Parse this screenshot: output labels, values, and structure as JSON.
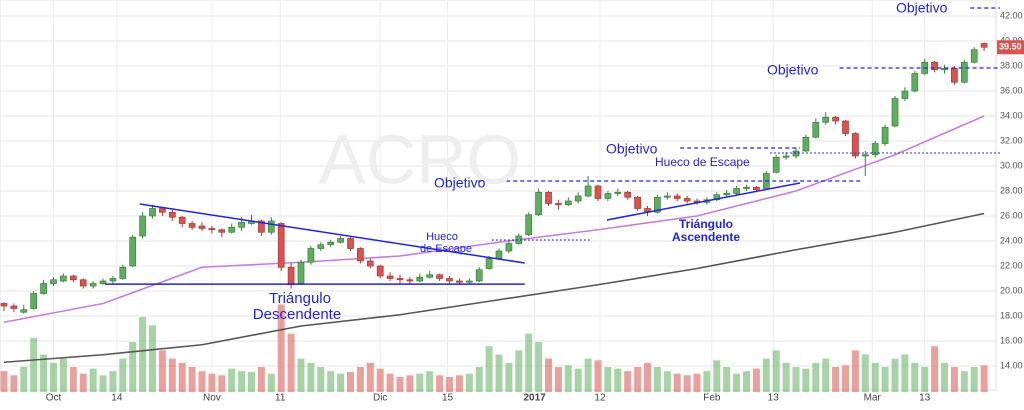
{
  "chart_data": {
    "type": "candlestick",
    "watermark": "ACRO",
    "ylim": [
      14,
      42
    ],
    "yticks": [
      {
        "value": 14,
        "label": "14.00"
      },
      {
        "value": 16,
        "label": "16.00"
      },
      {
        "value": 18,
        "label": "18.00"
      },
      {
        "value": 20,
        "label": "20.00"
      },
      {
        "value": 22,
        "label": "22.00"
      },
      {
        "value": 24,
        "label": "24.00"
      },
      {
        "value": 26,
        "label": "26.00"
      },
      {
        "value": 28,
        "label": "28.00"
      },
      {
        "value": 30,
        "label": "30.00"
      },
      {
        "value": 32,
        "label": "32.00"
      },
      {
        "value": 34,
        "label": "34.00"
      },
      {
        "value": 36,
        "label": "36.00"
      },
      {
        "value": 38,
        "label": "38.00"
      },
      {
        "value": 40,
        "label": "40.00"
      },
      {
        "value": 42,
        "label": "42.00"
      }
    ],
    "xticks": [
      {
        "value": 5,
        "label": "Oct"
      },
      {
        "value": 11.4,
        "label": "14"
      },
      {
        "value": 21,
        "label": "Nov"
      },
      {
        "value": 27.9,
        "label": "11"
      },
      {
        "value": 38,
        "label": "Dic"
      },
      {
        "value": 44.8,
        "label": "15"
      },
      {
        "value": 53.6,
        "label": "2017"
      },
      {
        "value": 60.2,
        "label": "12"
      },
      {
        "value": 71.5,
        "label": "Feb"
      },
      {
        "value": 77.7,
        "label": "13"
      },
      {
        "value": 87.7,
        "label": "Mar"
      },
      {
        "value": 93,
        "label": "13"
      }
    ],
    "grid": true,
    "up_color": "#5fae5f",
    "down_color": "#d9534f",
    "last_price": {
      "value": 39.5,
      "label": "39.50"
    },
    "ohlc": [
      [
        19.0,
        19.1,
        18.4,
        18.8
      ],
      [
        18.8,
        19.0,
        18.3,
        18.6
      ],
      [
        18.3,
        18.9,
        18.2,
        18.5
      ],
      [
        18.6,
        20.0,
        18.5,
        19.8
      ],
      [
        19.8,
        20.9,
        19.7,
        20.6
      ],
      [
        20.6,
        21.1,
        20.4,
        20.9
      ],
      [
        20.8,
        21.4,
        20.7,
        21.2
      ],
      [
        21.2,
        21.3,
        20.7,
        20.9
      ],
      [
        20.9,
        21.0,
        20.2,
        20.4
      ],
      [
        20.4,
        20.8,
        20.2,
        20.6
      ],
      [
        20.6,
        21.0,
        20.5,
        20.8
      ],
      [
        20.8,
        21.2,
        20.6,
        21.0
      ],
      [
        21.0,
        22.1,
        20.9,
        21.9
      ],
      [
        22.0,
        24.5,
        21.9,
        24.3
      ],
      [
        24.4,
        26.3,
        24.2,
        26.0
      ],
      [
        26.0,
        26.9,
        25.8,
        26.6
      ],
      [
        26.6,
        26.7,
        26.0,
        26.3
      ],
      [
        26.3,
        26.5,
        25.6,
        25.9
      ],
      [
        25.9,
        26.0,
        25.1,
        25.4
      ],
      [
        25.4,
        25.6,
        24.9,
        25.1
      ],
      [
        25.2,
        25.5,
        24.8,
        25.0
      ],
      [
        25.0,
        25.2,
        24.6,
        24.9
      ],
      [
        24.9,
        25.0,
        24.3,
        24.7
      ],
      [
        24.7,
        25.4,
        24.6,
        25.1
      ],
      [
        25.1,
        25.9,
        24.8,
        25.5
      ],
      [
        25.4,
        26.1,
        25.3,
        25.6
      ],
      [
        25.6,
        25.7,
        24.4,
        24.7
      ],
      [
        24.7,
        25.9,
        24.5,
        25.6
      ],
      [
        25.4,
        25.5,
        21.6,
        21.9
      ],
      [
        21.9,
        22.2,
        20.2,
        20.5
      ],
      [
        20.6,
        22.5,
        20.5,
        22.3
      ],
      [
        22.3,
        23.6,
        22.1,
        23.4
      ],
      [
        23.4,
        23.9,
        23.2,
        23.7
      ],
      [
        23.7,
        24.1,
        23.5,
        23.9
      ],
      [
        23.9,
        24.4,
        23.8,
        24.2
      ],
      [
        24.2,
        24.3,
        23.2,
        23.4
      ],
      [
        23.4,
        23.5,
        22.2,
        22.4
      ],
      [
        22.4,
        22.6,
        21.8,
        22.0
      ],
      [
        22.0,
        22.1,
        21.0,
        21.2
      ],
      [
        21.2,
        21.5,
        20.8,
        21.0
      ],
      [
        21.0,
        21.3,
        20.6,
        20.9
      ],
      [
        20.9,
        21.1,
        20.5,
        20.8
      ],
      [
        20.8,
        21.4,
        20.7,
        21.1
      ],
      [
        21.1,
        21.6,
        21.0,
        21.3
      ],
      [
        21.3,
        21.4,
        20.8,
        21.0
      ],
      [
        21.0,
        21.2,
        20.6,
        20.8
      ],
      [
        20.8,
        21.0,
        20.5,
        20.7
      ],
      [
        20.7,
        21.0,
        20.5,
        20.8
      ],
      [
        20.8,
        21.9,
        20.7,
        21.7
      ],
      [
        21.8,
        22.8,
        21.7,
        22.6
      ],
      [
        22.6,
        23.4,
        22.5,
        23.2
      ],
      [
        23.2,
        24.0,
        23.0,
        23.8
      ],
      [
        23.8,
        24.6,
        23.7,
        24.4
      ],
      [
        24.5,
        26.3,
        24.4,
        26.1
      ],
      [
        26.1,
        28.2,
        26.0,
        27.9
      ],
      [
        27.9,
        28.0,
        26.8,
        27.0
      ],
      [
        27.0,
        27.3,
        26.5,
        26.9
      ],
      [
        26.9,
        27.5,
        26.8,
        27.2
      ],
      [
        27.2,
        27.9,
        27.0,
        27.6
      ],
      [
        27.6,
        29.2,
        27.5,
        28.4
      ],
      [
        28.4,
        28.5,
        27.2,
        27.4
      ],
      [
        27.4,
        28.0,
        27.2,
        27.8
      ],
      [
        27.8,
        28.2,
        27.6,
        27.9
      ],
      [
        27.9,
        28.0,
        27.3,
        27.5
      ],
      [
        27.5,
        27.6,
        26.4,
        26.6
      ],
      [
        26.6,
        26.8,
        26.0,
        26.3
      ],
      [
        26.3,
        27.7,
        26.2,
        27.5
      ],
      [
        27.5,
        27.9,
        27.3,
        27.6
      ],
      [
        27.6,
        27.8,
        27.2,
        27.4
      ],
      [
        27.4,
        27.6,
        27.0,
        27.2
      ],
      [
        27.2,
        27.4,
        26.9,
        27.1
      ],
      [
        27.1,
        27.5,
        26.9,
        27.3
      ],
      [
        27.3,
        27.9,
        27.2,
        27.7
      ],
      [
        27.7,
        28.1,
        27.5,
        27.8
      ],
      [
        27.8,
        28.4,
        27.7,
        28.2
      ],
      [
        28.2,
        28.5,
        28.0,
        28.3
      ],
      [
        28.3,
        28.4,
        27.9,
        28.1
      ],
      [
        28.2,
        29.6,
        28.1,
        29.4
      ],
      [
        29.5,
        30.9,
        29.4,
        30.7
      ],
      [
        30.7,
        31.1,
        30.5,
        30.8
      ],
      [
        30.8,
        31.5,
        30.6,
        31.2
      ],
      [
        31.2,
        32.5,
        31.1,
        32.3
      ],
      [
        32.3,
        33.8,
        32.2,
        33.5
      ],
      [
        33.5,
        34.3,
        33.3,
        33.9
      ],
      [
        33.9,
        34.0,
        33.3,
        33.6
      ],
      [
        33.6,
        33.7,
        32.4,
        32.6
      ],
      [
        32.6,
        32.7,
        30.6,
        30.8
      ],
      [
        30.8,
        31.2,
        29.2,
        30.9
      ],
      [
        30.9,
        32.0,
        30.7,
        31.8
      ],
      [
        31.8,
        33.3,
        31.6,
        33.1
      ],
      [
        33.2,
        35.6,
        33.1,
        35.4
      ],
      [
        35.4,
        36.3,
        35.2,
        36.0
      ],
      [
        36.0,
        37.6,
        35.9,
        37.4
      ],
      [
        37.4,
        38.6,
        37.3,
        38.3
      ],
      [
        38.3,
        38.4,
        37.5,
        37.7
      ],
      [
        37.7,
        38.1,
        37.4,
        37.8
      ],
      [
        37.8,
        38.0,
        36.5,
        36.7
      ],
      [
        36.7,
        38.5,
        36.6,
        38.3
      ],
      [
        38.3,
        39.5,
        38.2,
        39.3
      ],
      [
        39.8,
        39.9,
        39.2,
        39.5
      ]
    ],
    "volume_lim": [
      0,
      120
    ],
    "volume": [
      25,
      20,
      30,
      65,
      45,
      35,
      40,
      30,
      22,
      28,
      20,
      25,
      40,
      60,
      90,
      80,
      50,
      40,
      35,
      30,
      25,
      22,
      20,
      28,
      25,
      24,
      30,
      22,
      105,
      70,
      40,
      35,
      30,
      25,
      22,
      24,
      30,
      35,
      28,
      22,
      18,
      20,
      22,
      25,
      20,
      18,
      20,
      22,
      30,
      55,
      45,
      35,
      50,
      70,
      60,
      40,
      30,
      32,
      28,
      40,
      38,
      30,
      28,
      25,
      30,
      35,
      30,
      25,
      22,
      20,
      22,
      25,
      38,
      30,
      22,
      25,
      28,
      40,
      50,
      35,
      30,
      28,
      35,
      40,
      30,
      32,
      50,
      45,
      35,
      30,
      40,
      45,
      35,
      30,
      55,
      35,
      30,
      25,
      30,
      32
    ],
    "ma": [
      {
        "color": "#c77ddb",
        "x": [
          0,
          10,
          20,
          30,
          40,
          50,
          60,
          70,
          80,
          90,
          99
        ],
        "values": [
          17.5,
          19.0,
          21.9,
          22.3,
          22.8,
          23.9,
          24.9,
          26.0,
          28.0,
          30.9,
          34.0
        ]
      },
      {
        "color": "#555555",
        "x": [
          0,
          10,
          20,
          30,
          40,
          50,
          60,
          70,
          80,
          90,
          99
        ],
        "values": [
          14.3,
          14.9,
          15.7,
          17.2,
          18.1,
          19.3,
          20.5,
          21.8,
          23.3,
          24.7,
          26.2
        ]
      }
    ],
    "lines": [
      {
        "style": "solid",
        "x": [
          13.7,
          52.6
        ],
        "y": [
          26.96,
          22.24
        ]
      },
      {
        "style": "solid",
        "x": [
          10.2,
          52.6
        ],
        "y": [
          20.55,
          20.55
        ]
      },
      {
        "style": "solid",
        "x": [
          60.9,
          80.4
        ],
        "y": [
          25.68,
          28.64
        ]
      },
      {
        "style": "dashed",
        "x": [
          47.9,
          86.5
        ],
        "y": [
          28.8,
          28.8
        ]
      },
      {
        "style": "dashed",
        "x": [
          68.3,
          80.4
        ],
        "y": [
          31.44,
          31.44
        ]
      },
      {
        "style": "dashed",
        "x": [
          84.4,
          100.6
        ],
        "y": [
          37.84,
          37.84
        ]
      },
      {
        "style": "dashed",
        "x": [
          97.6,
          100.6
        ],
        "y": [
          42.64,
          42.64
        ]
      },
      {
        "style": "dotted",
        "x": [
          49.3,
          59.2
        ],
        "y": [
          24.08,
          24.08
        ]
      },
      {
        "style": "dotted",
        "x": [
          77.4,
          100.6
        ],
        "y": [
          31.04,
          31.04
        ]
      }
    ],
    "texts": [
      "Objetivo",
      "Objetivo",
      "Objetivo",
      "Objetivo",
      "Hueco",
      "de Escape",
      "Hueco de Escape",
      "Triángulo",
      "Descendente",
      "Triángulo",
      "Ascendente"
    ]
  }
}
